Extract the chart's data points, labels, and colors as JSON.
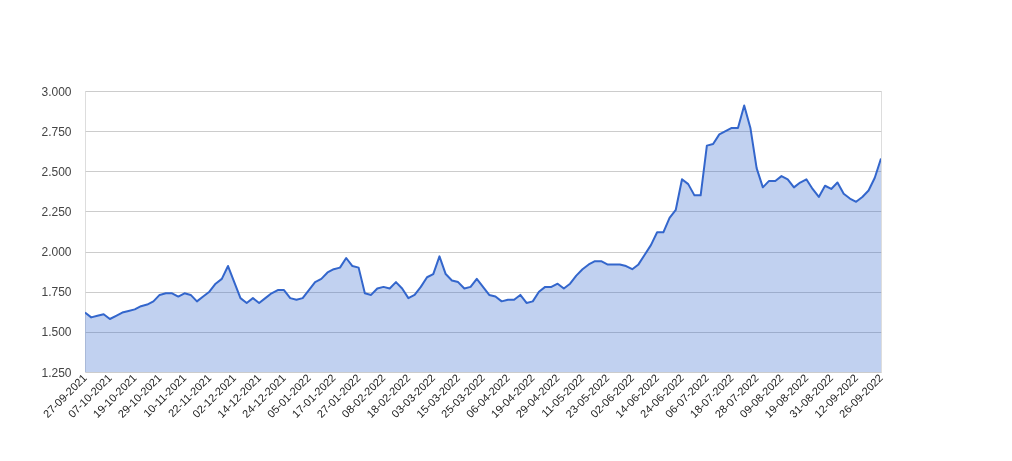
{
  "chart_data": {
    "type": "area",
    "categories": [
      "27-09-2021",
      null,
      null,
      null,
      "07-10-2021",
      null,
      null,
      null,
      "19-10-2021",
      null,
      null,
      null,
      "29-10-2021",
      null,
      null,
      null,
      "10-11-2021",
      null,
      null,
      null,
      "22-11-2021",
      null,
      null,
      null,
      "02-12-2021",
      null,
      null,
      null,
      "14-12-2021",
      null,
      null,
      null,
      "24-12-2021",
      null,
      null,
      null,
      "05-01-2022",
      null,
      null,
      null,
      "17-01-2022",
      null,
      null,
      null,
      "27-01-2022",
      null,
      null,
      null,
      "08-02-2022",
      null,
      null,
      null,
      "18-02-2022",
      null,
      null,
      null,
      "03-03-2022",
      null,
      null,
      null,
      "15-03-2022",
      null,
      null,
      null,
      "25-03-2022",
      null,
      null,
      null,
      "06-04-2022",
      null,
      null,
      null,
      "19-04-2022",
      null,
      null,
      null,
      "29-04-2022",
      null,
      null,
      null,
      "11-05-2022",
      null,
      null,
      null,
      "23-05-2022",
      null,
      null,
      null,
      "02-06-2022",
      null,
      null,
      null,
      "14-06-2022",
      null,
      null,
      null,
      "24-06-2022",
      null,
      null,
      null,
      "06-07-2022",
      null,
      null,
      null,
      "18-07-2022",
      null,
      null,
      null,
      "28-07-2022",
      null,
      null,
      null,
      "09-08-2022",
      null,
      null,
      null,
      "19-08-2022",
      null,
      null,
      null,
      "31-08-2022",
      null,
      null,
      null,
      "12-09-2022",
      null,
      null,
      null,
      "26-09-2022"
    ],
    "series": [
      {
        "color": "#3366cc",
        "values": [
          1.62,
          1.59,
          1.6,
          1.61,
          1.58,
          1.6,
          1.62,
          1.63,
          1.64,
          1.66,
          1.67,
          1.69,
          1.73,
          1.74,
          1.74,
          1.72,
          1.74,
          1.73,
          1.69,
          1.72,
          1.75,
          1.8,
          1.83,
          1.91,
          1.81,
          1.71,
          1.68,
          1.71,
          1.68,
          1.71,
          1.74,
          1.76,
          1.76,
          1.71,
          1.7,
          1.71,
          1.76,
          1.81,
          1.83,
          1.87,
          1.89,
          1.9,
          1.96,
          1.91,
          1.9,
          1.74,
          1.73,
          1.77,
          1.78,
          1.77,
          1.81,
          1.77,
          1.71,
          1.73,
          1.78,
          1.84,
          1.86,
          1.97,
          1.86,
          1.82,
          1.81,
          1.77,
          1.78,
          1.83,
          1.78,
          1.73,
          1.72,
          1.69,
          1.7,
          1.7,
          1.73,
          1.68,
          1.69,
          1.75,
          1.78,
          1.78,
          1.8,
          1.77,
          1.8,
          1.85,
          1.89,
          1.92,
          1.94,
          1.94,
          1.92,
          1.92,
          1.92,
          1.91,
          1.89,
          1.92,
          1.98,
          2.04,
          2.12,
          2.12,
          2.21,
          2.26,
          2.45,
          2.42,
          2.35,
          2.35,
          2.66,
          2.67,
          2.73,
          2.75,
          2.77,
          2.77,
          2.91,
          2.77,
          2.52,
          2.4,
          2.44,
          2.44,
          2.47,
          2.45,
          2.4,
          2.43,
          2.45,
          2.39,
          2.34,
          2.41,
          2.39,
          2.43,
          2.36,
          2.33,
          2.31,
          2.34,
          2.38,
          2.46,
          2.58
        ]
      }
    ],
    "ylim": [
      1.25,
      3.0
    ],
    "yticks": [
      {
        "value": 1.25,
        "label": "1.250"
      },
      {
        "value": 1.5,
        "label": "1.500"
      },
      {
        "value": 1.75,
        "label": "1.750"
      },
      {
        "value": 2.0,
        "label": "2.000"
      },
      {
        "value": 2.25,
        "label": "2.250"
      },
      {
        "value": 2.5,
        "label": "2.500"
      },
      {
        "value": 2.75,
        "label": "2.750"
      },
      {
        "value": 3.0,
        "label": "3.000"
      }
    ],
    "grid": "y",
    "legend": false
  }
}
